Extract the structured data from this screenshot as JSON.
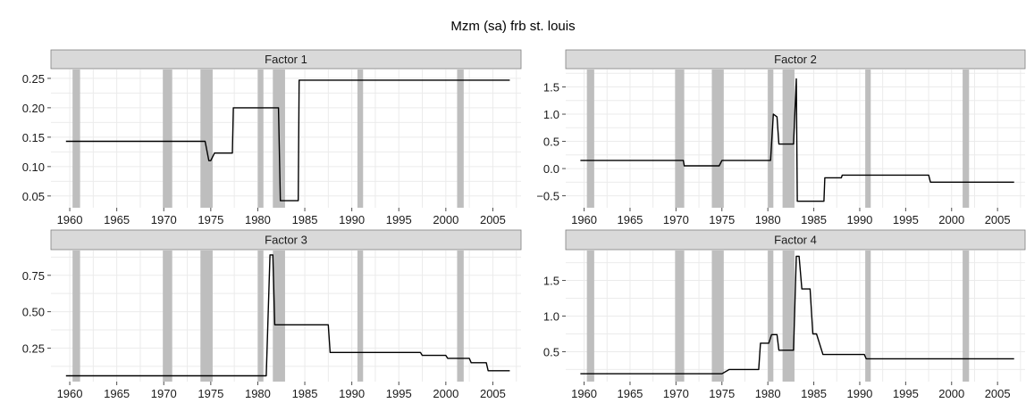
{
  "title": "Mzm (sa) frb st. louis",
  "recession_color": "#bebebe",
  "strip_color": "#d9d9d9",
  "panel_bg": "#ffffff",
  "grid_color": "#ebebeb",
  "line_color": "#000000",
  "x_ticks": [
    1960,
    1965,
    1970,
    1975,
    1980,
    1985,
    1990,
    1995,
    2000,
    2005
  ],
  "x_tick_labels": [
    "1960",
    "1965",
    "1970",
    "1975",
    "1980",
    "1985",
    "1990",
    "1995",
    "2000",
    "2005"
  ],
  "recessions": [
    [
      1960.3,
      1961.1
    ],
    [
      1969.9,
      1970.9
    ],
    [
      1973.9,
      1975.2
    ],
    [
      1980.0,
      1980.6
    ],
    [
      1981.6,
      1982.9
    ],
    [
      1990.6,
      1991.2
    ],
    [
      2001.2,
      2001.9
    ]
  ],
  "chart_data": [
    {
      "type": "line",
      "strip": "Factor 1",
      "xlim": [
        1958,
        2008
      ],
      "ylim": [
        0.03,
        0.265
      ],
      "y_ticks": [
        0.05,
        0.1,
        0.15,
        0.2,
        0.25
      ],
      "y_tick_labels": [
        "0.05",
        "0.10",
        "0.15",
        "0.20",
        "0.25"
      ],
      "x": [
        1959.6,
        1974.4,
        1974.8,
        1975.0,
        1975.4,
        1977.3,
        1977.4,
        1982.2,
        1982.4,
        1984.3,
        1984.4,
        2006.8
      ],
      "y": [
        0.143,
        0.143,
        0.11,
        0.11,
        0.123,
        0.123,
        0.2,
        0.2,
        0.042,
        0.042,
        0.247,
        0.247
      ]
    },
    {
      "type": "line",
      "strip": "Factor 2",
      "xlim": [
        1958,
        2008
      ],
      "ylim": [
        -0.72,
        1.82
      ],
      "y_ticks": [
        -0.5,
        0.0,
        0.5,
        1.0,
        1.5
      ],
      "y_tick_labels": [
        "−0.5",
        "0.0",
        "0.5",
        "1.0",
        "1.5"
      ],
      "x": [
        1959.6,
        1970.8,
        1970.9,
        1974.7,
        1975.0,
        1980.3,
        1980.6,
        1981.0,
        1981.2,
        1982.8,
        1983.1,
        1983.2,
        1986.1,
        1986.2,
        1988.0,
        1988.1,
        1997.5,
        1997.7,
        2006.8
      ],
      "y": [
        0.15,
        0.15,
        0.05,
        0.05,
        0.15,
        0.15,
        1.0,
        0.95,
        0.45,
        0.45,
        1.65,
        -0.6,
        -0.6,
        -0.17,
        -0.17,
        -0.12,
        -0.12,
        -0.25,
        -0.25
      ]
    },
    {
      "type": "line",
      "strip": "Factor 3",
      "xlim": [
        1958,
        2008
      ],
      "ylim": [
        0.02,
        0.92
      ],
      "y_ticks": [
        0.25,
        0.5,
        0.75
      ],
      "y_tick_labels": [
        "0.25",
        "0.50",
        "0.75"
      ],
      "x": [
        1959.6,
        1980.9,
        1981.3,
        1981.6,
        1981.8,
        1987.5,
        1987.7,
        1997.3,
        1997.5,
        2000.0,
        2000.2,
        2002.5,
        2002.7,
        2004.3,
        2004.5,
        2006.8
      ],
      "y": [
        0.06,
        0.06,
        0.89,
        0.89,
        0.41,
        0.41,
        0.22,
        0.22,
        0.2,
        0.2,
        0.18,
        0.18,
        0.15,
        0.15,
        0.095,
        0.095
      ]
    },
    {
      "type": "line",
      "strip": "Factor 4",
      "xlim": [
        1958,
        2008
      ],
      "ylim": [
        0.08,
        1.92
      ],
      "y_ticks": [
        0.5,
        1.0,
        1.5
      ],
      "y_tick_labels": [
        "0.5",
        "1.0",
        "1.5"
      ],
      "x": [
        1959.6,
        1975.0,
        1975.8,
        1979.0,
        1979.2,
        1980.1,
        1980.4,
        1981.0,
        1981.2,
        1982.8,
        1983.1,
        1983.4,
        1983.7,
        1984.6,
        1984.9,
        1985.3,
        1986.0,
        1990.5,
        1990.7,
        2006.8
      ],
      "y": [
        0.19,
        0.19,
        0.25,
        0.25,
        0.62,
        0.62,
        0.74,
        0.74,
        0.52,
        0.52,
        1.84,
        1.84,
        1.38,
        1.38,
        0.75,
        0.75,
        0.46,
        0.46,
        0.4,
        0.4
      ]
    }
  ]
}
